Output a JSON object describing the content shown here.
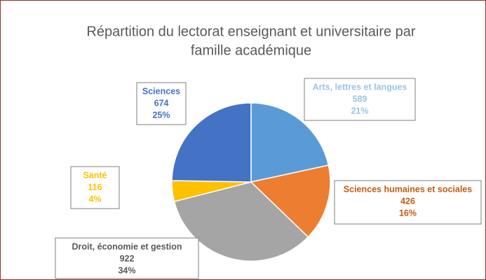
{
  "chart_data": {
    "type": "pie",
    "title": [
      "Répartition du lectorat enseignant et universitaire par",
      "famille académique"
    ],
    "categories": [
      "Arts, lettres et langues",
      "Sciences humaines et sociales",
      "Droit, économie et gestion",
      "Santé",
      "Sciences"
    ],
    "values": [
      589,
      426,
      922,
      116,
      674
    ],
    "percent_labels": [
      "21%",
      "16%",
      "34%",
      "4%",
      "25%"
    ],
    "colors": [
      "#5b9bd5",
      "#ed7d31",
      "#a5a5a5",
      "#ffc000",
      "#4472c4"
    ],
    "label_colors": [
      "#9dc3e6",
      "#c55a11",
      "#595959",
      "#ffc000",
      "#4472c4"
    ]
  }
}
